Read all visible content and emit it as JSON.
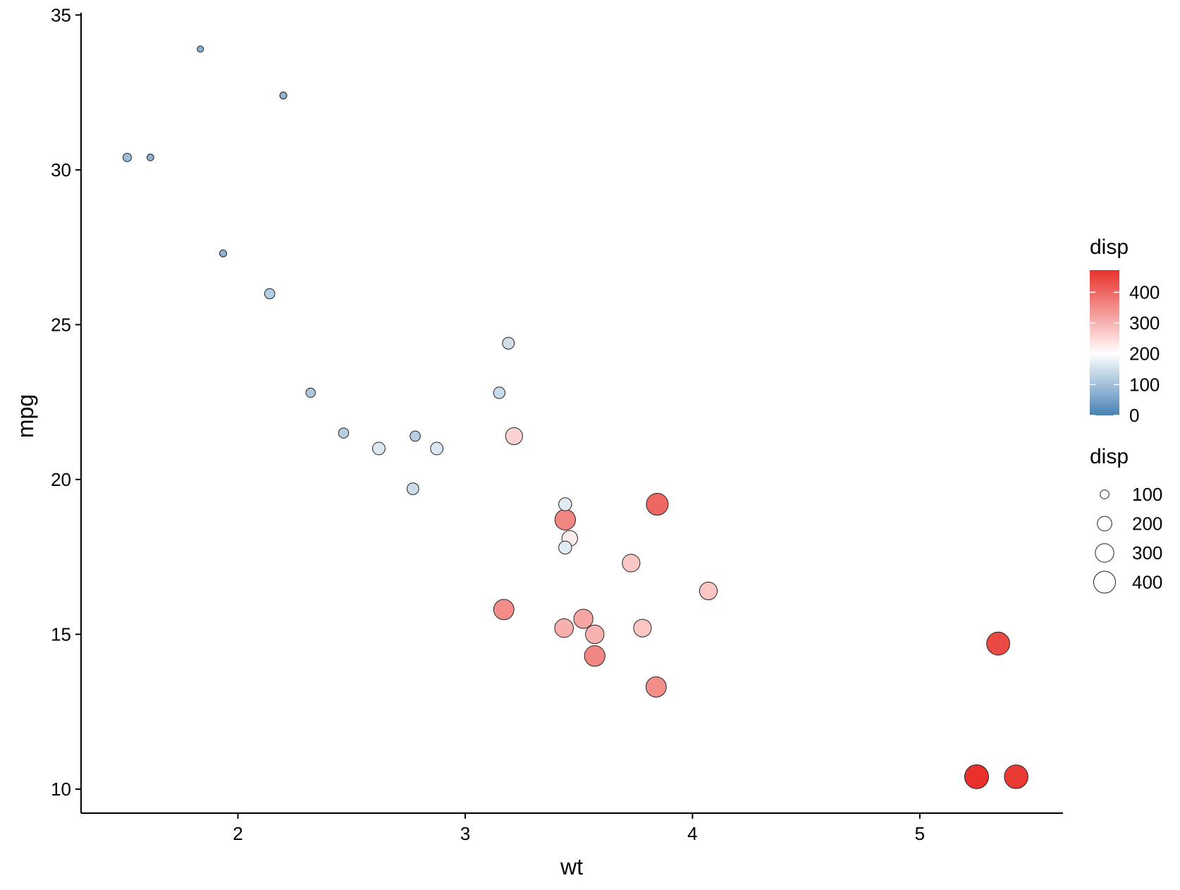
{
  "chart_data": {
    "type": "scatter",
    "title": "",
    "xlabel": "wt",
    "ylabel": "mpg",
    "xlim": [
      1.31,
      5.63
    ],
    "ylim": [
      9.225,
      35.075
    ],
    "x_ticks": [
      2,
      3,
      4,
      5
    ],
    "y_ticks": [
      10,
      15,
      20,
      25,
      30,
      35
    ],
    "grid": false,
    "legend_position": "right",
    "color_legend": {
      "title": "disp",
      "limits": [
        0,
        472
      ],
      "breaks": [
        0,
        100,
        200,
        300,
        400
      ],
      "low_color": "#4682b4",
      "mid_color": "#ffffff",
      "high_color": "#e8312b",
      "midpoint": 200
    },
    "size_legend": {
      "title": "disp",
      "breaks": [
        100,
        200,
        300,
        400
      ]
    },
    "points": [
      {
        "x": 2.62,
        "y": 21.0,
        "disp": 160
      },
      {
        "x": 2.875,
        "y": 21.0,
        "disp": 160
      },
      {
        "x": 2.32,
        "y": 22.8,
        "disp": 108
      },
      {
        "x": 3.215,
        "y": 21.4,
        "disp": 258
      },
      {
        "x": 3.44,
        "y": 18.7,
        "disp": 360
      },
      {
        "x": 3.46,
        "y": 18.1,
        "disp": 225
      },
      {
        "x": 3.57,
        "y": 14.3,
        "disp": 360
      },
      {
        "x": 3.19,
        "y": 24.4,
        "disp": 146.7
      },
      {
        "x": 3.15,
        "y": 22.8,
        "disp": 140.8
      },
      {
        "x": 3.44,
        "y": 19.2,
        "disp": 167.6
      },
      {
        "x": 3.44,
        "y": 17.8,
        "disp": 167.6
      },
      {
        "x": 4.07,
        "y": 16.4,
        "disp": 275.8
      },
      {
        "x": 3.73,
        "y": 17.3,
        "disp": 275.8
      },
      {
        "x": 3.78,
        "y": 15.2,
        "disp": 275.8
      },
      {
        "x": 5.25,
        "y": 10.4,
        "disp": 472
      },
      {
        "x": 5.424,
        "y": 10.4,
        "disp": 460
      },
      {
        "x": 5.345,
        "y": 14.7,
        "disp": 440
      },
      {
        "x": 2.2,
        "y": 32.4,
        "disp": 78.7
      },
      {
        "x": 1.615,
        "y": 30.4,
        "disp": 75.7
      },
      {
        "x": 1.835,
        "y": 33.9,
        "disp": 71.1
      },
      {
        "x": 2.465,
        "y": 21.5,
        "disp": 120.1
      },
      {
        "x": 3.52,
        "y": 15.5,
        "disp": 318
      },
      {
        "x": 3.435,
        "y": 15.2,
        "disp": 304
      },
      {
        "x": 3.84,
        "y": 13.3,
        "disp": 350
      },
      {
        "x": 3.845,
        "y": 19.2,
        "disp": 400
      },
      {
        "x": 1.935,
        "y": 27.3,
        "disp": 79
      },
      {
        "x": 2.14,
        "y": 26.0,
        "disp": 120.3
      },
      {
        "x": 1.513,
        "y": 30.4,
        "disp": 95.1
      },
      {
        "x": 3.17,
        "y": 15.8,
        "disp": 351
      },
      {
        "x": 2.77,
        "y": 19.7,
        "disp": 145
      },
      {
        "x": 3.57,
        "y": 15.0,
        "disp": 301
      },
      {
        "x": 2.78,
        "y": 21.4,
        "disp": 121
      }
    ]
  }
}
